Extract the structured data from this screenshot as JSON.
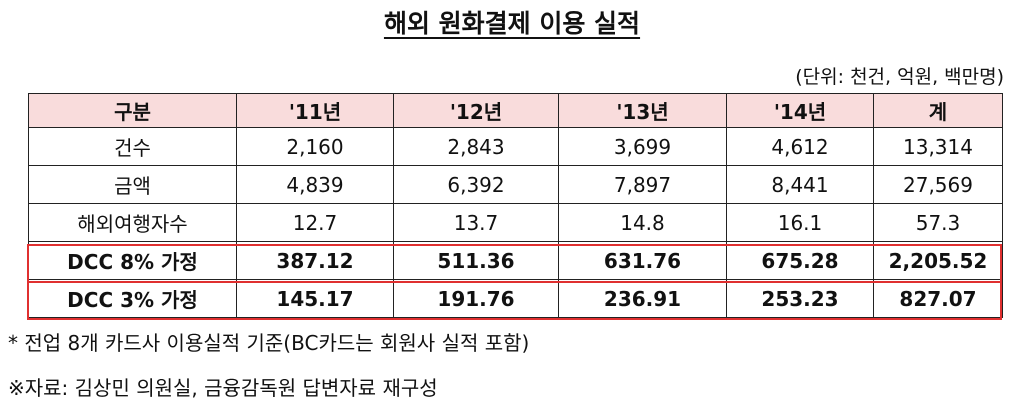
{
  "title": "해외 원화결제 이용 실적",
  "unit": "(단위: 천건, 억원, 백만명)",
  "table": {
    "header": [
      "구분",
      "'11년",
      "'12년",
      "'13년",
      "'14년",
      "계"
    ],
    "rows": [
      [
        "건수",
        "2,160",
        "2,843",
        "3,699",
        "4,612",
        "13,314"
      ],
      [
        "금액",
        "4,839",
        "6,392",
        "7,897",
        "8,441",
        "27,569"
      ],
      [
        "해외여행자수",
        "12.7",
        "13.7",
        "14.8",
        "16.1",
        "57.3"
      ],
      [
        "DCC 8% 가정",
        "387.12",
        "511.36",
        "631.76",
        "675.28",
        "2,205.52"
      ],
      [
        "DCC 3% 가정",
        "145.17",
        "191.76",
        "236.91",
        "253.23",
        "827.07"
      ]
    ]
  },
  "notes": [
    "* 전업 8개 카드사 이용실적 기준(BC카드는 회원사 실적 포함)",
    "※자료: 김상민 의원실, 금융감독원 답변자료 재구성"
  ]
}
